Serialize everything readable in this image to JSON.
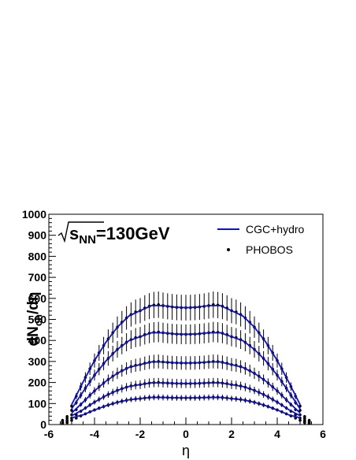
{
  "chart_data": {
    "type": "line",
    "title": "√sNN=130GeV",
    "energy_label": {
      "prefix": "s",
      "subscript": "NN",
      "suffix": "=130GeV"
    },
    "xlabel": "η",
    "ylabel": {
      "main": "dN",
      "sub": "ch",
      "suffix": "/dη"
    },
    "xlim": [
      -6,
      6
    ],
    "ylim": [
      0,
      1000
    ],
    "x_ticks": [
      -6,
      -4,
      -2,
      0,
      2,
      4,
      6
    ],
    "y_ticks": [
      0,
      100,
      200,
      300,
      400,
      500,
      600,
      700,
      800,
      900,
      1000
    ],
    "grid": false,
    "legend_position": "top-right",
    "colors": {
      "model": "#1010c8",
      "data": "#000000"
    },
    "eta_points": [
      -5.4,
      -5.2,
      -5.0,
      -4.8,
      -4.6,
      -4.4,
      -4.2,
      -4.0,
      -3.8,
      -3.6,
      -3.4,
      -3.2,
      -3.0,
      -2.8,
      -2.6,
      -2.4,
      -2.2,
      -2.0,
      -1.8,
      -1.6,
      -1.4,
      -1.2,
      -1.0,
      -0.8,
      -0.6,
      -0.4,
      -0.2,
      0.0,
      0.2,
      0.4,
      0.6,
      0.8,
      1.0,
      1.2,
      1.4,
      1.6,
      1.8,
      2.0,
      2.2,
      2.4,
      2.6,
      2.8,
      3.0,
      3.2,
      3.4,
      3.6,
      3.8,
      4.0,
      4.2,
      4.4,
      4.6,
      4.8,
      5.0,
      5.2,
      5.4
    ],
    "model_x": [
      -5.0,
      -4.5,
      -4.0,
      -3.5,
      -3.0,
      -2.5,
      -2.0,
      -1.5,
      -1.0,
      -0.5,
      0.0,
      0.5,
      1.0,
      1.5,
      2.0,
      2.5,
      3.0,
      3.5,
      4.0,
      4.5,
      5.0
    ],
    "centralities": [
      {
        "height": 570,
        "model_tail": 95
      },
      {
        "height": 440,
        "model_tail": 75
      },
      {
        "height": 300,
        "model_tail": 55
      },
      {
        "height": 200,
        "model_tail": 42
      },
      {
        "height": 130,
        "model_tail": 32
      }
    ],
    "legend": {
      "model_label": "CGC+hydro",
      "data_label": "PHOBOS"
    }
  }
}
